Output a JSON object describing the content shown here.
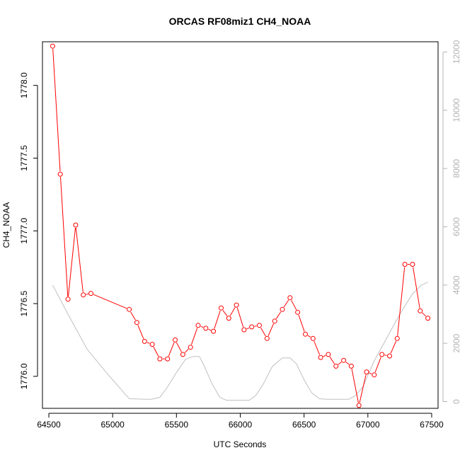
{
  "chart_data": {
    "type": "line",
    "title": "ORCAS RF08miz1 CH4_NOAA",
    "xlabel": "UTC Seconds",
    "ylabel": "CH4_NOAA",
    "xlim": [
      64450,
      67550
    ],
    "ylim": [
      1775.78,
      1778.3
    ],
    "y2lim": [
      -230,
      12350
    ],
    "x_ticks": [
      64500,
      65000,
      65500,
      66000,
      66500,
      67000,
      67500
    ],
    "y_ticks": [
      1776.0,
      1776.5,
      1777.0,
      1777.5,
      1778.0
    ],
    "y_tick_labels": [
      "1776.0",
      "1776.5",
      "1777.0",
      "1777.5",
      "1778.0"
    ],
    "y2_ticks": [
      0,
      2000,
      4000,
      6000,
      8000,
      10000,
      12000
    ],
    "grid": false,
    "legend": "none",
    "colors": {
      "series": "#ff0000",
      "secondary": "#c0c0c0",
      "frame": "#000000",
      "secondary_axis": "#b3b3b3"
    },
    "series": [
      {
        "color": "#ff0000",
        "marker": "open-circle",
        "axis": "left",
        "x": [
          64530,
          64590,
          64650,
          64710,
          64770,
          64830,
          65130,
          65190,
          65250,
          65310,
          65370,
          65430,
          65490,
          65550,
          65610,
          65670,
          65730,
          65790,
          65850,
          65910,
          65970,
          66030,
          66090,
          66150,
          66210,
          66270,
          66330,
          66390,
          66450,
          66510,
          66570,
          66630,
          66690,
          66750,
          66810,
          66870,
          66930,
          66990,
          67050,
          67110,
          67170,
          67230,
          67290,
          67350,
          67410,
          67470
        ],
        "y": [
          1778.27,
          1777.39,
          1776.53,
          1777.04,
          1776.56,
          1776.57,
          1776.46,
          1776.37,
          1776.24,
          1776.22,
          1776.12,
          1776.12,
          1776.25,
          1776.15,
          1776.2,
          1776.35,
          1776.33,
          1776.31,
          1776.47,
          1776.4,
          1776.49,
          1776.32,
          1776.34,
          1776.35,
          1776.26,
          1776.38,
          1776.46,
          1776.54,
          1776.44,
          1776.29,
          1776.26,
          1776.13,
          1776.15,
          1776.07,
          1776.11,
          1776.07,
          1775.8,
          1776.03,
          1776.01,
          1776.15,
          1776.14,
          1776.26,
          1776.77,
          1776.77,
          1776.45,
          1776.4
        ]
      },
      {
        "color": "#c0c0c0",
        "axis": "right",
        "x": [
          64530,
          64650,
          64800,
          64950,
          65130,
          65250,
          65300,
          65370,
          65430,
          65500,
          65570,
          65630,
          65680,
          65720,
          65780,
          65840,
          65890,
          65950,
          66000,
          66070,
          66120,
          66180,
          66250,
          66330,
          66390,
          66440,
          66500,
          66560,
          66620,
          66680,
          66850,
          66900,
          66960,
          67050,
          67150,
          67250,
          67350,
          67420,
          67470
        ],
        "y": [
          4000,
          3000,
          1800,
          1000,
          100,
          80,
          80,
          150,
          500,
          1000,
          1450,
          1550,
          1550,
          1200,
          600,
          150,
          50,
          50,
          50,
          50,
          200,
          600,
          1200,
          1500,
          1500,
          1300,
          750,
          300,
          100,
          80,
          80,
          200,
          500,
          1400,
          2200,
          3000,
          3700,
          4000,
          4100
        ]
      }
    ]
  }
}
